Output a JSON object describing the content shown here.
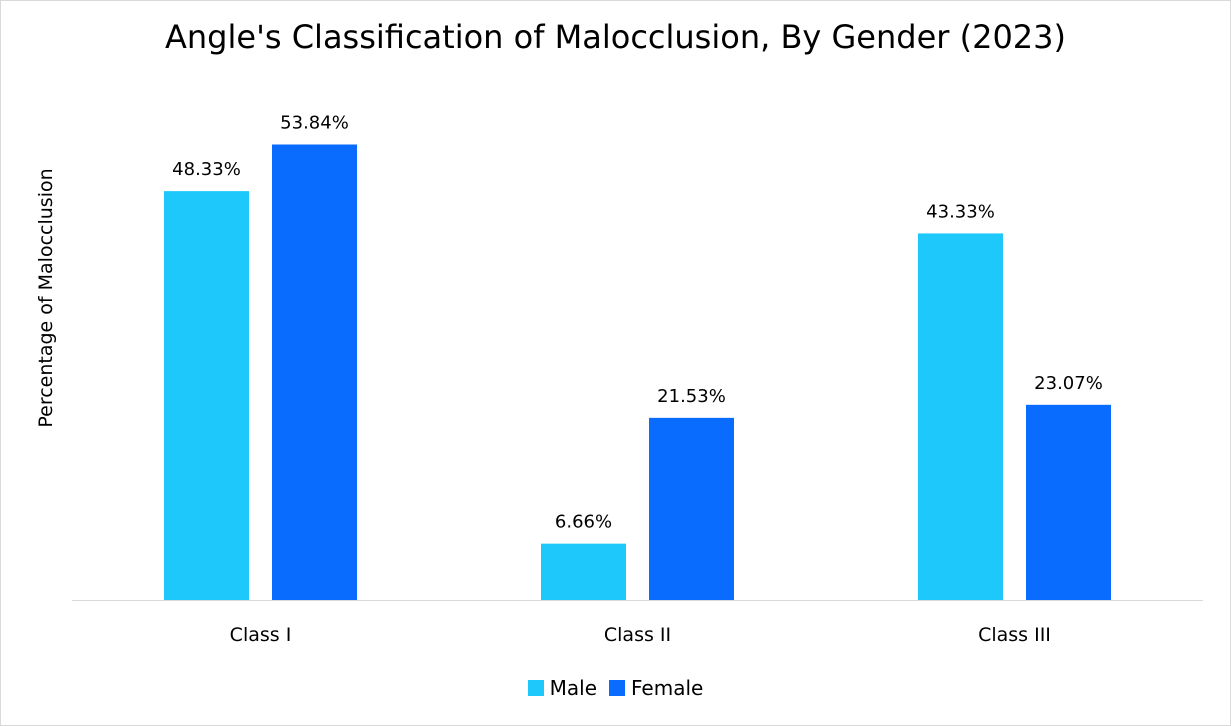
{
  "chart_data": {
    "type": "bar",
    "title": "Angle's Classification of Malocclusion, By Gender (2023)",
    "xlabel": "",
    "ylabel": "Percentage of Malocclusion",
    "categories": [
      "Class I",
      "Class II",
      "Class III"
    ],
    "series": [
      {
        "name": "Male",
        "color": "#1EC8FA",
        "values": [
          48.33,
          6.66,
          43.33
        ],
        "labels": [
          "48.33%",
          "6.66%",
          "43.33%"
        ]
      },
      {
        "name": "Female",
        "color": "#0A6CFF",
        "values": [
          53.84,
          21.53,
          23.07
        ],
        "labels": [
          "53.84%",
          "21.53%",
          "23.07%"
        ]
      }
    ],
    "ylim": [
      0,
      60
    ],
    "grid": false,
    "legend": "bottom"
  }
}
